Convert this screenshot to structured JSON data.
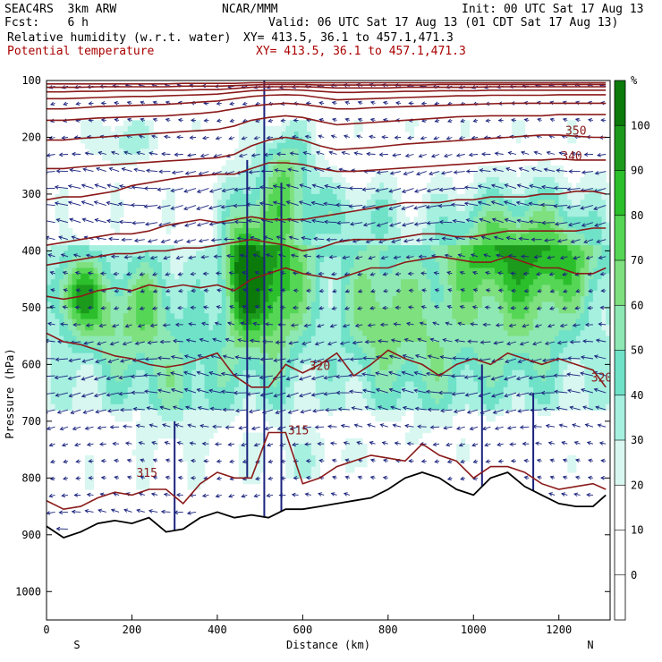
{
  "header": {
    "model": "SEAC4RS  3km ARW",
    "org": "NCAR/MMM",
    "init": "Init: 00 UTC Sat 17 Aug 13",
    "fcst": "Fcst:    6 h",
    "valid": "Valid: 06 UTC Sat 17 Aug 13 (01 CDT Sat 17 Aug 13)",
    "field1": "Relative humidity (w.r.t. water)",
    "xy1": "XY= 413.5, 36.1 to 457.1,471.3",
    "field2": "Potential temperature",
    "xy2": "XY= 413.5, 36.1 to 457.1,471.3"
  },
  "chart_data": {
    "type": "heatmap",
    "title": "",
    "xlabel": "Distance (km)",
    "ylabel": "Pressure (hPa)",
    "xlim": [
      0,
      1320
    ],
    "ylim": [
      1050,
      100
    ],
    "x_ticks": [
      "0",
      "200",
      "400",
      "600",
      "800",
      "1000",
      "1200"
    ],
    "y_ticks": [
      "100",
      "200",
      "300",
      "400",
      "500",
      "600",
      "700",
      "800",
      "900",
      "1000"
    ],
    "y_tick_values": [
      100,
      200,
      300,
      400,
      500,
      600,
      700,
      800,
      900,
      1000
    ],
    "x_tick_values": [
      0,
      200,
      400,
      600,
      800,
      1000,
      1200
    ],
    "end_labels": {
      "left": "S",
      "right": "N"
    },
    "colorbar": {
      "unit": "%",
      "levels": [
        "100",
        "90",
        "80",
        "70",
        "60",
        "50",
        "40",
        "30",
        "20",
        "10",
        "0"
      ],
      "colors": [
        "#0b7a0b",
        "#1c9a1c",
        "#2bbf2b",
        "#55d655",
        "#7ee07e",
        "#8ee8b4",
        "#6fe2c8",
        "#a6f0e0",
        "#d8f7f0",
        "#ffffff",
        "#ffffff",
        "#ffffff"
      ]
    },
    "theta_contour_labels": [
      {
        "text": "350",
        "x": 1240,
        "p": 195
      },
      {
        "text": "340",
        "x": 1230,
        "p": 240
      },
      {
        "text": "320",
        "x": 640,
        "p": 610
      },
      {
        "text": "320",
        "x": 1300,
        "p": 630
      },
      {
        "text": "315",
        "x": 590,
        "p": 723
      },
      {
        "text": "315",
        "x": 235,
        "p": 798
      }
    ],
    "terrain_profile": {
      "x": [
        0,
        40,
        80,
        120,
        160,
        200,
        240,
        280,
        320,
        360,
        400,
        440,
        480,
        520,
        560,
        600,
        640,
        680,
        720,
        760,
        800,
        840,
        880,
        920,
        960,
        1000,
        1040,
        1080,
        1120,
        1160,
        1200,
        1240,
        1280,
        1310
      ],
      "p": [
        885,
        905,
        895,
        880,
        875,
        880,
        870,
        895,
        890,
        870,
        860,
        870,
        865,
        870,
        855,
        855,
        850,
        845,
        840,
        835,
        820,
        800,
        790,
        800,
        820,
        830,
        800,
        790,
        815,
        830,
        845,
        850,
        850,
        830
      ]
    },
    "theta_levels": [
      {
        "theta": 315,
        "p": [
          840,
          855,
          850,
          835,
          825,
          830,
          820,
          820,
          845,
          810,
          790,
          800,
          800,
          720,
          720,
          810,
          800,
          780,
          770,
          760,
          765,
          770,
          740,
          760,
          770,
          800,
          780,
          780,
          790,
          810,
          820,
          815,
          810,
          820
        ]
      },
      {
        "theta": 320,
        "p": [
          545,
          560,
          565,
          575,
          585,
          590,
          600,
          605,
          600,
          590,
          580,
          620,
          640,
          640,
          600,
          615,
          600,
          580,
          620,
          600,
          575,
          590,
          600,
          620,
          600,
          590,
          600,
          580,
          590,
          600,
          590,
          600,
          610,
          640
        ]
      },
      {
        "theta": 325,
        "p": [
          480,
          485,
          480,
          470,
          465,
          470,
          460,
          465,
          460,
          465,
          460,
          470,
          450,
          440,
          430,
          440,
          445,
          450,
          440,
          430,
          430,
          420,
          415,
          410,
          415,
          420,
          420,
          410,
          420,
          430,
          430,
          440,
          440,
          430
        ]
      },
      {
        "theta": 330,
        "p": [
          425,
          420,
          415,
          410,
          405,
          405,
          400,
          400,
          395,
          395,
          390,
          385,
          380,
          385,
          390,
          400,
          395,
          385,
          380,
          380,
          380,
          375,
          370,
          370,
          375,
          375,
          370,
          365,
          365,
          365,
          365,
          365,
          360,
          360
        ]
      },
      {
        "theta": 335,
        "p": [
          390,
          385,
          380,
          375,
          370,
          370,
          365,
          355,
          350,
          345,
          350,
          345,
          340,
          345,
          345,
          345,
          340,
          335,
          330,
          325,
          320,
          315,
          315,
          315,
          310,
          310,
          305,
          305,
          305,
          300,
          300,
          295,
          295,
          300
        ]
      },
      {
        "theta": 340,
        "p": [
          310,
          305,
          305,
          300,
          295,
          285,
          280,
          275,
          270,
          268,
          265,
          265,
          255,
          245,
          245,
          248,
          255,
          260,
          260,
          258,
          256,
          254,
          252,
          250,
          248,
          246,
          244,
          242,
          240,
          240,
          238,
          240,
          240,
          240
        ]
      },
      {
        "theta": 345,
        "p": [
          255,
          255,
          252,
          250,
          248,
          246,
          244,
          242,
          240,
          238,
          236,
          230,
          215,
          205,
          200,
          205,
          215,
          222,
          220,
          218,
          215,
          212,
          210,
          208,
          206,
          204,
          202,
          200,
          198,
          196,
          196,
          198,
          200,
          200
        ]
      },
      {
        "theta": 350,
        "p": [
          205,
          205,
          202,
          200,
          198,
          196,
          194,
          192,
          190,
          188,
          186,
          180,
          170,
          165,
          162,
          165,
          172,
          178,
          176,
          174,
          172,
          170,
          168,
          166,
          164,
          163,
          162,
          162,
          162,
          162,
          160,
          160,
          160,
          160
        ]
      },
      {
        "theta": 360,
        "p": [
          170,
          170,
          168,
          166,
          165,
          164,
          163,
          162,
          160,
          158,
          155,
          150,
          145,
          142,
          140,
          142,
          146,
          150,
          150,
          148,
          147,
          146,
          145,
          144,
          143,
          142,
          141,
          140,
          140,
          140,
          140,
          140,
          140,
          140
        ]
      },
      {
        "theta": 370,
        "p": [
          150,
          150,
          148,
          146,
          145,
          144,
          143,
          142,
          140,
          138,
          136,
          132,
          128,
          126,
          125,
          126,
          130,
          134,
          133,
          132,
          131,
          130,
          129,
          128,
          127,
          127,
          126,
          126,
          126,
          126,
          125,
          125,
          125,
          125
        ]
      },
      {
        "theta": 380,
        "p": [
          132,
          132,
          131,
          130,
          129,
          128,
          128,
          127,
          126,
          125,
          124,
          121,
          118,
          117,
          116,
          117,
          119,
          121,
          121,
          120,
          120,
          119,
          119,
          118,
          118,
          118,
          117,
          117,
          117,
          117,
          117,
          117,
          117,
          117
        ]
      },
      {
        "theta": 390,
        "p": [
          120,
          120,
          119,
          119,
          118,
          118,
          118,
          117,
          117,
          116,
          116,
          114,
          112,
          111,
          111,
          111,
          112,
          113,
          113,
          113,
          113,
          112,
          112,
          112,
          112,
          112,
          111,
          111,
          111,
          111,
          111,
          111,
          111,
          111
        ]
      },
      {
        "theta": 400,
        "p": [
          112,
          112,
          112,
          111,
          111,
          111,
          111,
          111,
          110,
          110,
          110,
          109,
          108,
          107,
          107,
          107,
          108,
          108,
          108,
          108,
          108,
          108,
          108,
          107,
          107,
          107,
          107,
          107,
          107,
          107,
          107,
          107,
          107,
          107
        ]
      },
      {
        "theta": 410,
        "p": [
          106,
          106,
          106,
          106,
          106,
          106,
          106,
          106,
          105,
          105,
          105,
          105,
          104,
          104,
          104,
          104,
          104,
          104,
          104,
          104,
          104,
          104,
          104,
          104,
          104,
          104,
          104,
          104,
          104,
          104,
          104,
          104,
          104,
          104
        ]
      }
    ]
  }
}
